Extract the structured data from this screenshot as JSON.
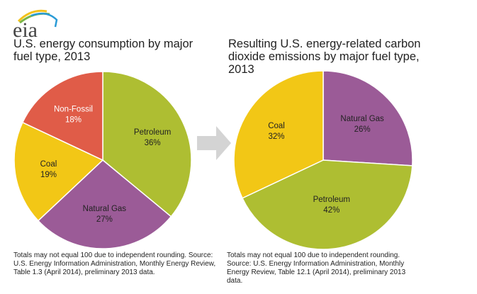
{
  "logo": {
    "text": "eia"
  },
  "chart_data": [
    {
      "type": "pie",
      "title": "U.S. energy consumption by major fuel type, 2013",
      "slices": [
        {
          "label": "Petroleum",
          "value": 36,
          "display": "36%",
          "color": "#aebe32",
          "text_color": "#222222"
        },
        {
          "label": "Natural Gas",
          "value": 27,
          "display": "27%",
          "color": "#9b5b97",
          "text_color": "#222222"
        },
        {
          "label": "Coal",
          "value": 19,
          "display": "19%",
          "color": "#f2c716",
          "text_color": "#222222"
        },
        {
          "label": "Non-Fossil",
          "value": 18,
          "display": "18%",
          "color": "#e05c48",
          "text_color": "#ffffff"
        }
      ],
      "note": "Totals may not equal 100 due to independent rounding. Source: U.S. Energy Information Administration, Monthly Energy Review, Table 1.3 (April 2014), preliminary 2013 data."
    },
    {
      "type": "pie",
      "title": "Resulting U.S. energy-related carbon dioxide emissions by major fuel type, 2013",
      "slices": [
        {
          "label": "Natural Gas",
          "value": 26,
          "display": "26%",
          "color": "#9b5b97",
          "text_color": "#222222"
        },
        {
          "label": "Petroleum",
          "value": 42,
          "display": "42%",
          "color": "#aebe32",
          "text_color": "#222222"
        },
        {
          "label": "Coal",
          "value": 32,
          "display": "32%",
          "color": "#f2c716",
          "text_color": "#222222"
        }
      ],
      "note": "Totals may not equal 100 due to independent rounding. Source: U.S. Energy Information Administration, Monthly Energy Review, Table 12.1 (April 2014), preliminary 2013 data."
    }
  ]
}
